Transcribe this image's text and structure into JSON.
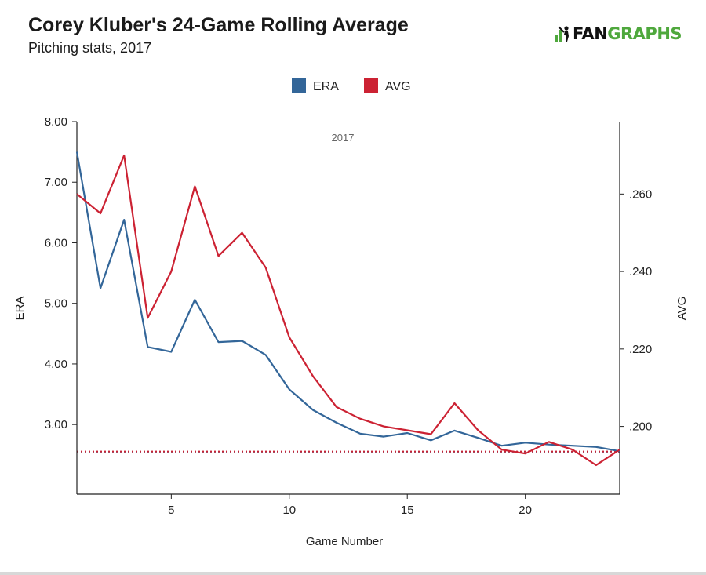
{
  "header": {
    "title": "Corey Kluber's 24-Game Rolling Average",
    "subtitle": "Pitching stats, 2017",
    "logo_part1": "FAN",
    "logo_part2": "GRAPHS"
  },
  "colors": {
    "era": "#336699",
    "avg": "#cc2233",
    "axis": "#222222"
  },
  "chart_data": {
    "type": "line",
    "title": "Corey Kluber's 24-Game Rolling Average",
    "subtitle": "Pitching stats, 2017",
    "annotation": "2017",
    "xlabel": "Game Number",
    "ylabel": "ERA",
    "ylabel_right": "AVG",
    "x": [
      1,
      2,
      3,
      4,
      5,
      6,
      7,
      8,
      9,
      10,
      11,
      12,
      13,
      14,
      15,
      16,
      17,
      18,
      19,
      20,
      21,
      22,
      23,
      24
    ],
    "xlim": [
      1,
      24
    ],
    "xticks": [
      "5",
      "10",
      "15",
      "20"
    ],
    "xtick_values": [
      5,
      10,
      15,
      20
    ],
    "ylim": [
      1.85,
      8.0
    ],
    "yticks": [
      "3.00",
      "4.00",
      "5.00",
      "6.00",
      "7.00",
      "8.00"
    ],
    "ytick_values": [
      3,
      4,
      5,
      6,
      7,
      8
    ],
    "ylim_right": [
      0.1825,
      0.2787
    ],
    "yticks_right": [
      ".200",
      ".220",
      ".240",
      ".260"
    ],
    "ytick_values_right": [
      0.2,
      0.22,
      0.24,
      0.26
    ],
    "legend_position": "top-center",
    "series": [
      {
        "name": "ERA",
        "axis": "left",
        "values": [
          7.5,
          5.25,
          6.38,
          4.28,
          4.2,
          5.06,
          4.36,
          4.38,
          4.15,
          3.58,
          3.24,
          3.03,
          2.85,
          2.8,
          2.86,
          2.74,
          2.9,
          2.78,
          2.65,
          2.7,
          2.67,
          2.65,
          2.63,
          2.56
        ]
      },
      {
        "name": "AVG",
        "axis": "right",
        "values": [
          0.26,
          0.255,
          0.27,
          0.228,
          0.24,
          0.262,
          0.244,
          0.25,
          0.241,
          0.223,
          0.213,
          0.205,
          0.202,
          0.2,
          0.199,
          0.198,
          0.206,
          0.199,
          0.194,
          0.193,
          0.196,
          0.194,
          0.19,
          0.194
        ]
      }
    ],
    "reference_lines": [
      {
        "series": "ERA",
        "axis": "left",
        "value": 2.55
      },
      {
        "series": "AVG",
        "axis": "right",
        "value": 0.1935
      }
    ]
  }
}
